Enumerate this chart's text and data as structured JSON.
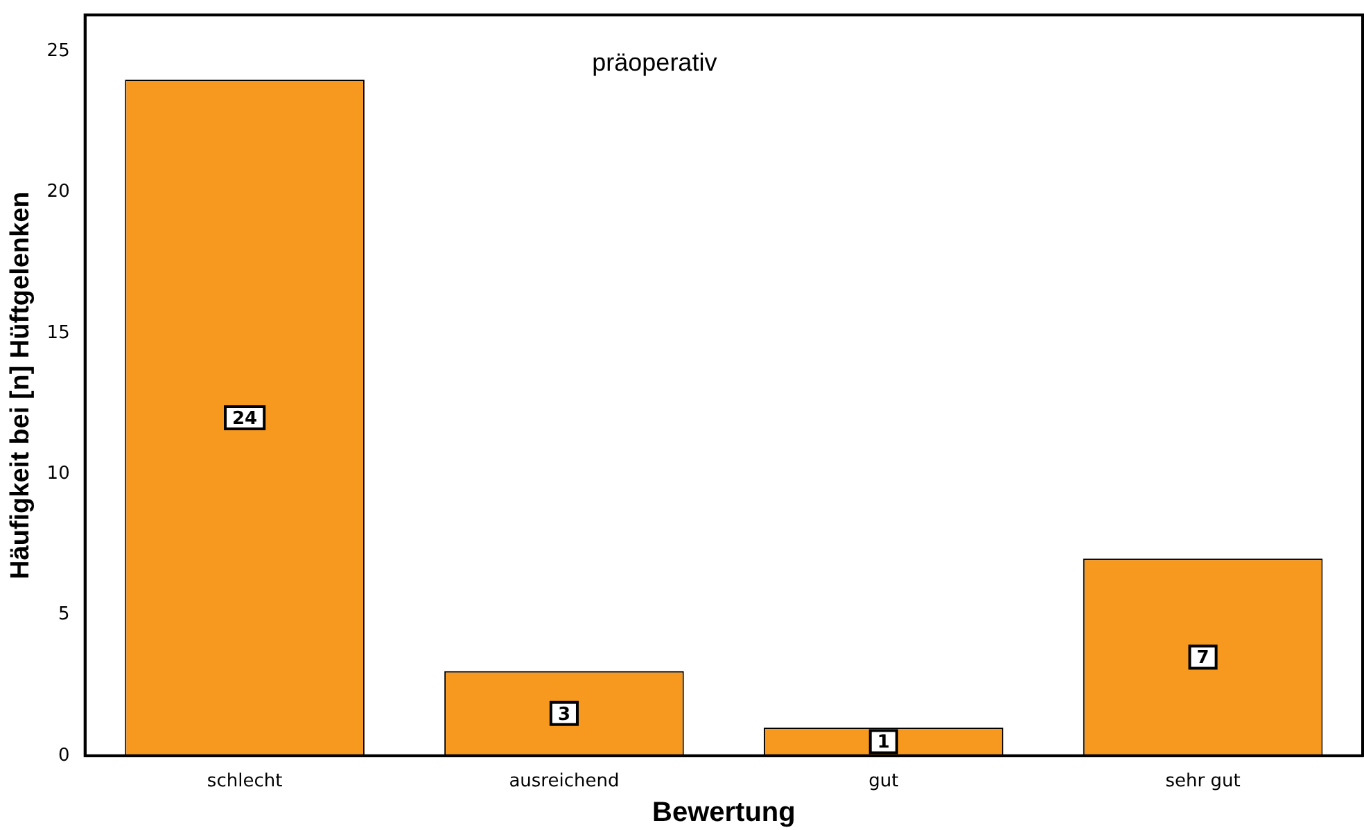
{
  "chart_data": {
    "type": "bar",
    "title": "präoperativ",
    "xlabel": "Bewertung",
    "ylabel": "Häufigkeit bei [n] Hüftgelenken",
    "categories": [
      "schlecht",
      "ausreichend",
      "gut",
      "sehr gut"
    ],
    "values": [
      24,
      3,
      1,
      7
    ],
    "color": "#f7991f",
    "ylim": [
      0,
      26.3
    ],
    "yticks": [
      0,
      5,
      10,
      15,
      20,
      25
    ],
    "grid": false,
    "legend": false,
    "data_labels": true
  }
}
